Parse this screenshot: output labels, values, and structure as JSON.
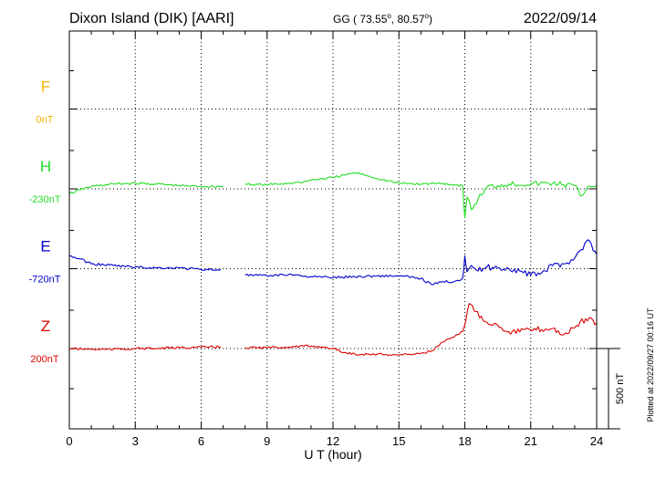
{
  "header": {
    "station": "Dixon Island (DIK)  [AARI]",
    "coords_prefix": "GG ( 73.55",
    "coords_mid": ",  80.57",
    "coords_suffix": ")",
    "degree_mark": "o",
    "date": "2022/09/14"
  },
  "footer": {
    "plotted": "Plotted at 2022/09/27 00:16 UT"
  },
  "chart_data": {
    "type": "line",
    "title": "Dixon Island (DIK)  [AARI]",
    "xlabel": "U T (hour)",
    "xlim": [
      0,
      24
    ],
    "xticks": [
      0,
      3,
      6,
      9,
      12,
      15,
      18,
      21,
      24
    ],
    "grid": true,
    "scale_bar": {
      "label": "500 nT",
      "value": 500
    },
    "colors": {
      "F": "#f5b400",
      "H": "#22dd22",
      "E": "#0000cc",
      "Z": "#dd0000"
    },
    "series": [
      {
        "name": "F",
        "baseline_label": "0nT",
        "baseline": 0,
        "offset_units": -3.0,
        "x": [],
        "values": []
      },
      {
        "name": "H",
        "baseline_label": "-230nT",
        "baseline": -230,
        "offset_units": -2.0,
        "x": [
          0,
          0.5,
          1,
          2,
          3,
          4,
          5,
          6,
          7,
          7.7,
          8,
          9,
          10,
          10.5,
          11,
          12,
          12.5,
          13,
          13.5,
          14,
          15,
          16,
          17,
          17.5,
          17.9,
          18.0,
          18.1,
          18.3,
          18.6,
          19,
          19.5,
          20,
          21,
          22,
          22.5,
          23,
          23.3,
          23.6,
          24
        ],
        "values": [
          -260,
          -235,
          -215,
          -200,
          -195,
          -200,
          -210,
          -215,
          -215,
          null,
          -200,
          -205,
          -195,
          -190,
          -175,
          -160,
          -145,
          -130,
          -145,
          -165,
          -195,
          -200,
          -195,
          -205,
          -210,
          -410,
          -280,
          -360,
          -295,
          -220,
          -210,
          -200,
          -200,
          -195,
          -205,
          -210,
          -275,
          -215,
          -205
        ]
      },
      {
        "name": "E",
        "baseline_label": "-720nT",
        "baseline": -720,
        "offset_units": -1.0,
        "x": [
          0,
          0.5,
          1,
          2,
          3,
          4,
          5,
          6,
          6.9,
          7.7,
          8,
          9,
          10,
          11,
          12,
          13,
          14,
          15,
          16,
          16.5,
          17,
          17.5,
          17.9,
          18.0,
          18.1,
          18.3,
          18.6,
          19,
          19.5,
          20,
          20.5,
          21,
          21.5,
          22,
          22.5,
          23,
          23.3,
          23.6,
          24
        ],
        "values": [
          -640,
          -660,
          -690,
          -700,
          -710,
          -715,
          -715,
          -725,
          -725,
          null,
          -760,
          -765,
          -755,
          -770,
          -775,
          -770,
          -765,
          -765,
          -780,
          -820,
          -800,
          -800,
          -780,
          -640,
          -740,
          -700,
          -735,
          -710,
          -715,
          -720,
          -735,
          -760,
          -745,
          -700,
          -690,
          -655,
          -600,
          -540,
          -630
        ]
      },
      {
        "name": "Z",
        "baseline_label": "200nT",
        "baseline": 200,
        "offset_units": 0.0,
        "x": [
          0,
          1,
          2,
          3,
          4,
          5,
          6,
          6.9,
          7.7,
          8,
          9,
          10,
          11,
          11.5,
          12,
          12.5,
          13,
          14,
          15,
          15.5,
          16,
          16.5,
          17,
          17.5,
          17.9,
          18.2,
          18.5,
          19,
          19.5,
          20,
          21,
          22,
          22.5,
          23,
          23.5,
          24
        ],
        "values": [
          200,
          195,
          195,
          200,
          200,
          205,
          208,
          210,
          null,
          205,
          205,
          210,
          215,
          210,
          200,
          175,
          165,
          165,
          160,
          165,
          170,
          185,
          240,
          270,
          305,
          480,
          430,
          365,
          345,
          305,
          315,
          325,
          285,
          330,
          385,
          360
        ]
      }
    ]
  }
}
